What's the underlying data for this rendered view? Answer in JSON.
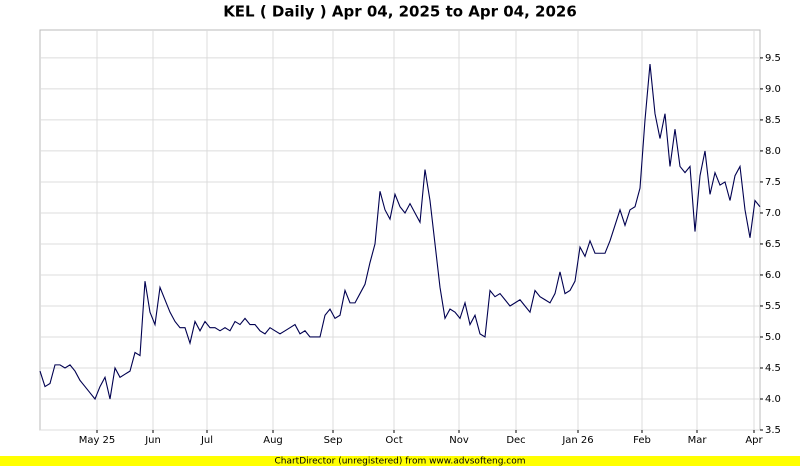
{
  "chart_data": {
    "type": "line",
    "title": "KEL ( Daily ) Apr 04, 2025 to Apr 04, 2026",
    "footer": "ChartDirector (unregistered) from www.advsofteng.com",
    "color": "#000050",
    "grid": true,
    "values": [
      4.45,
      4.2,
      4.25,
      4.55,
      4.55,
      4.5,
      4.55,
      4.45,
      4.3,
      4.2,
      4.1,
      4.0,
      4.2,
      4.35,
      4.0,
      4.5,
      4.35,
      4.4,
      4.45,
      4.75,
      4.7,
      5.9,
      5.4,
      5.2,
      5.8,
      5.6,
      5.4,
      5.25,
      5.15,
      5.15,
      4.9,
      5.25,
      5.1,
      5.25,
      5.15,
      5.15,
      5.1,
      5.15,
      5.1,
      5.25,
      5.2,
      5.3,
      5.2,
      5.2,
      5.1,
      5.05,
      5.15,
      5.1,
      5.05,
      5.1,
      5.15,
      5.2,
      5.05,
      5.1,
      5.0,
      5.0,
      5.0,
      5.35,
      5.45,
      5.3,
      5.35,
      5.75,
      5.55,
      5.55,
      5.7,
      5.85,
      6.2,
      6.5,
      7.35,
      7.05,
      6.9,
      7.3,
      7.1,
      7.0,
      7.15,
      7.0,
      6.85,
      7.7,
      7.2,
      6.5,
      5.8,
      5.3,
      5.45,
      5.4,
      5.3,
      5.55,
      5.2,
      5.35,
      5.05,
      5.0,
      5.75,
      5.65,
      5.7,
      5.6,
      5.5,
      5.55,
      5.6,
      5.5,
      5.4,
      5.75,
      5.65,
      5.6,
      5.55,
      5.7,
      6.05,
      5.7,
      5.75,
      5.9,
      6.45,
      6.3,
      6.55,
      6.35,
      6.35,
      6.35,
      6.55,
      6.8,
      7.05,
      6.8,
      7.05,
      7.1,
      7.4,
      8.5,
      9.4,
      8.6,
      8.2,
      8.6,
      7.75,
      8.35,
      7.75,
      7.65,
      7.75,
      6.7,
      7.6,
      8.0,
      7.3,
      7.65,
      7.45,
      7.5,
      7.2,
      7.6,
      7.75,
      7.05,
      6.6,
      7.2,
      7.1
    ],
    "xlim": [
      0,
      144
    ],
    "xticks": [
      {
        "value": 11.4,
        "label": "May 25"
      },
      {
        "value": 22.6,
        "label": "Jun"
      },
      {
        "value": 33.4,
        "label": "Jul"
      },
      {
        "value": 46.6,
        "label": "Aug"
      },
      {
        "value": 58.6,
        "label": "Sep"
      },
      {
        "value": 70.8,
        "label": "Oct"
      },
      {
        "value": 83.8,
        "label": "Nov"
      },
      {
        "value": 95.2,
        "label": "Dec"
      },
      {
        "value": 107.6,
        "label": "Jan 26"
      },
      {
        "value": 120.4,
        "label": "Feb"
      },
      {
        "value": 131.4,
        "label": "Mar"
      },
      {
        "value": 142.8,
        "label": "Apr"
      }
    ],
    "ylim": [
      3.5,
      9.95
    ],
    "yticks": [
      3.5,
      {
        "value": 4,
        "label": "4.0"
      },
      4.5,
      {
        "value": 5,
        "label": "5.0"
      },
      5.5,
      {
        "value": 6,
        "label": "6.0"
      },
      6.5,
      {
        "value": 7,
        "label": "7.0"
      },
      7.5,
      {
        "value": 8,
        "label": "8.0"
      },
      8.5,
      {
        "value": 9,
        "label": "9.0"
      },
      9.5
    ]
  }
}
